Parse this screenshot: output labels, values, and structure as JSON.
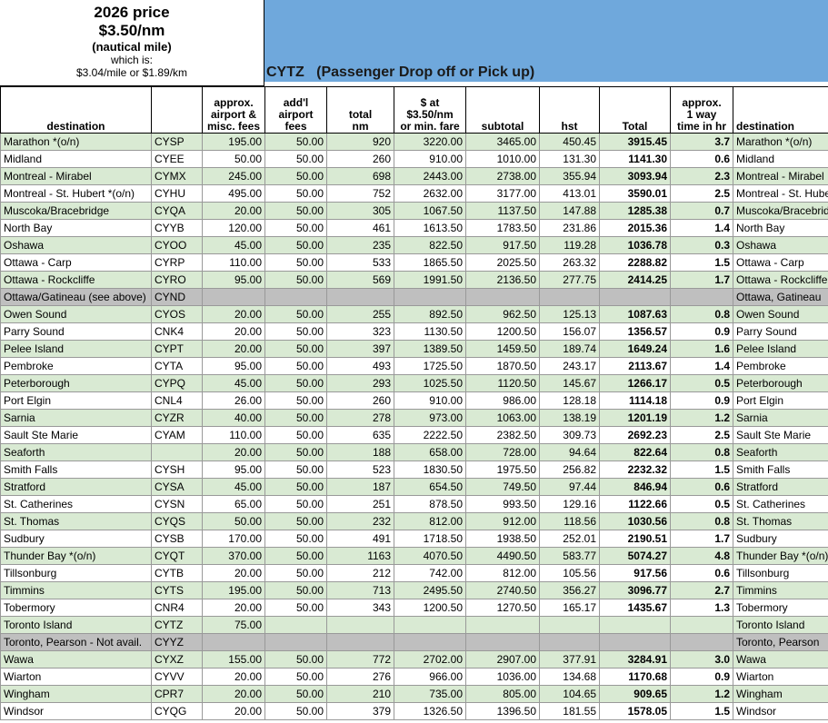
{
  "header": {
    "price_title": "2026 price",
    "price": "$3.50/nm",
    "unit": "(nautical mile)",
    "which_is": "which is:",
    "conversions": "$3.04/mile or $1.89/km",
    "banner_code": "CYTZ",
    "banner_text": "(Passenger Drop off or Pick up)"
  },
  "table": {
    "columns": [
      "destination",
      null,
      "approx.\nairport &\nmisc. fees",
      "add'l\nairport\nfees",
      "total\nnm",
      "$ at\n$3.50/nm\nor min. fare",
      "subtotal",
      "hst",
      "Total",
      "approx.\n1 way\ntime in hr",
      "destination"
    ],
    "row_colors": {
      "green": "#d9ead3",
      "white": "#ffffff",
      "gray": "#bfbfbf"
    },
    "rows": [
      {
        "color": "green",
        "cells": [
          "Marathon *(o/n)",
          "CYSP",
          "195.00",
          "50.00",
          "920",
          "3220.00",
          "3465.00",
          "450.45",
          "3915.45",
          "3.7",
          "Marathon *(o/n)"
        ]
      },
      {
        "color": "white",
        "cells": [
          "Midland",
          "CYEE",
          "50.00",
          "50.00",
          "260",
          "910.00",
          "1010.00",
          "131.30",
          "1141.30",
          "0.6",
          "Midland"
        ]
      },
      {
        "color": "green",
        "cells": [
          "Montreal - Mirabel",
          "CYMX",
          "245.00",
          "50.00",
          "698",
          "2443.00",
          "2738.00",
          "355.94",
          "3093.94",
          "2.3",
          "Montreal - Mirabel"
        ]
      },
      {
        "color": "white",
        "cells": [
          "Montreal - St. Hubert *(o/n)",
          "CYHU",
          "495.00",
          "50.00",
          "752",
          "2632.00",
          "3177.00",
          "413.01",
          "3590.01",
          "2.5",
          "Montreal - St. Hube"
        ]
      },
      {
        "color": "green",
        "cells": [
          "Muscoka/Bracebridge",
          "CYQA",
          "20.00",
          "50.00",
          "305",
          "1067.50",
          "1137.50",
          "147.88",
          "1285.38",
          "0.7",
          "Muscoka/Bracebrid"
        ]
      },
      {
        "color": "white",
        "cells": [
          "North Bay",
          "CYYB",
          "120.00",
          "50.00",
          "461",
          "1613.50",
          "1783.50",
          "231.86",
          "2015.36",
          "1.4",
          "North Bay"
        ]
      },
      {
        "color": "green",
        "cells": [
          "Oshawa",
          "CYOO",
          "45.00",
          "50.00",
          "235",
          "822.50",
          "917.50",
          "119.28",
          "1036.78",
          "0.3",
          "Oshawa"
        ]
      },
      {
        "color": "white",
        "cells": [
          "Ottawa - Carp",
          "CYRP",
          "110.00",
          "50.00",
          "533",
          "1865.50",
          "2025.50",
          "263.32",
          "2288.82",
          "1.5",
          "Ottawa - Carp"
        ]
      },
      {
        "color": "green",
        "cells": [
          "Ottawa - Rockcliffe",
          "CYRO",
          "95.00",
          "50.00",
          "569",
          "1991.50",
          "2136.50",
          "277.75",
          "2414.25",
          "1.7",
          "Ottawa - Rockcliffe"
        ]
      },
      {
        "color": "gray",
        "cells": [
          "Ottawa/Gatineau (see above)",
          "CYND",
          null,
          null,
          null,
          null,
          null,
          null,
          null,
          null,
          "Ottawa, Gatineau"
        ]
      },
      {
        "color": "green",
        "cells": [
          "Owen Sound",
          "CYOS",
          "20.00",
          "50.00",
          "255",
          "892.50",
          "962.50",
          "125.13",
          "1087.63",
          "0.8",
          "Owen Sound"
        ]
      },
      {
        "color": "white",
        "cells": [
          "Parry Sound",
          "CNK4",
          "20.00",
          "50.00",
          "323",
          "1130.50",
          "1200.50",
          "156.07",
          "1356.57",
          "0.9",
          "Parry Sound"
        ]
      },
      {
        "color": "green",
        "cells": [
          "Pelee Island",
          "CYPT",
          "20.00",
          "50.00",
          "397",
          "1389.50",
          "1459.50",
          "189.74",
          "1649.24",
          "1.6",
          "Pelee Island"
        ]
      },
      {
        "color": "white",
        "cells": [
          "Pembroke",
          "CYTA",
          "95.00",
          "50.00",
          "493",
          "1725.50",
          "1870.50",
          "243.17",
          "2113.67",
          "1.4",
          "Pembroke"
        ]
      },
      {
        "color": "green",
        "cells": [
          "Peterborough",
          "CYPQ",
          "45.00",
          "50.00",
          "293",
          "1025.50",
          "1120.50",
          "145.67",
          "1266.17",
          "0.5",
          "Peterborough"
        ]
      },
      {
        "color": "white",
        "cells": [
          "Port Elgin",
          "CNL4",
          "26.00",
          "50.00",
          "260",
          "910.00",
          "986.00",
          "128.18",
          "1114.18",
          "0.9",
          "Port Elgin"
        ]
      },
      {
        "color": "green",
        "cells": [
          "Sarnia",
          "CYZR",
          "40.00",
          "50.00",
          "278",
          "973.00",
          "1063.00",
          "138.19",
          "1201.19",
          "1.2",
          "Sarnia"
        ]
      },
      {
        "color": "white",
        "cells": [
          "Sault Ste Marie",
          "CYAM",
          "110.00",
          "50.00",
          "635",
          "2222.50",
          "2382.50",
          "309.73",
          "2692.23",
          "2.5",
          "Sault Ste Marie"
        ]
      },
      {
        "color": "green",
        "cells": [
          "Seaforth",
          null,
          "20.00",
          "50.00",
          "188",
          "658.00",
          "728.00",
          "94.64",
          "822.64",
          "0.8",
          "Seaforth"
        ]
      },
      {
        "color": "white",
        "cells": [
          "Smith Falls",
          "CYSH",
          "95.00",
          "50.00",
          "523",
          "1830.50",
          "1975.50",
          "256.82",
          "2232.32",
          "1.5",
          "Smith Falls"
        ]
      },
      {
        "color": "green",
        "cells": [
          "Stratford",
          "CYSA",
          "45.00",
          "50.00",
          "187",
          "654.50",
          "749.50",
          "97.44",
          "846.94",
          "0.6",
          "Stratford"
        ]
      },
      {
        "color": "white",
        "cells": [
          "St. Catherines",
          "CYSN",
          "65.00",
          "50.00",
          "251",
          "878.50",
          "993.50",
          "129.16",
          "1122.66",
          "0.5",
          "St. Catherines"
        ]
      },
      {
        "color": "green",
        "cells": [
          "St. Thomas",
          "CYQS",
          "50.00",
          "50.00",
          "232",
          "812.00",
          "912.00",
          "118.56",
          "1030.56",
          "0.8",
          "St. Thomas"
        ]
      },
      {
        "color": "white",
        "cells": [
          "Sudbury",
          "CYSB",
          "170.00",
          "50.00",
          "491",
          "1718.50",
          "1938.50",
          "252.01",
          "2190.51",
          "1.7",
          "Sudbury"
        ]
      },
      {
        "color": "green",
        "cells": [
          "Thunder Bay *(o/n)",
          "CYQT",
          "370.00",
          "50.00",
          "1163",
          "4070.50",
          "4490.50",
          "583.77",
          "5074.27",
          "4.8",
          "Thunder Bay *(o/n)"
        ]
      },
      {
        "color": "white",
        "cells": [
          "Tillsonburg",
          "CYTB",
          "20.00",
          "50.00",
          "212",
          "742.00",
          "812.00",
          "105.56",
          "917.56",
          "0.6",
          "Tillsonburg"
        ]
      },
      {
        "color": "green",
        "cells": [
          "Timmins",
          "CYTS",
          "195.00",
          "50.00",
          "713",
          "2495.50",
          "2740.50",
          "356.27",
          "3096.77",
          "2.7",
          "Timmins"
        ]
      },
      {
        "color": "white",
        "cells": [
          "Tobermory",
          "CNR4",
          "20.00",
          "50.00",
          "343",
          "1200.50",
          "1270.50",
          "165.17",
          "1435.67",
          "1.3",
          "Tobermory"
        ]
      },
      {
        "color": "green",
        "cells": [
          "Toronto Island",
          "CYTZ",
          "75.00",
          null,
          null,
          null,
          null,
          null,
          null,
          null,
          "Toronto Island"
        ]
      },
      {
        "color": "gray",
        "cells": [
          "Toronto, Pearson - Not avail.",
          "CYYZ",
          null,
          null,
          null,
          null,
          null,
          null,
          null,
          null,
          "Toronto, Pearson"
        ]
      },
      {
        "color": "green",
        "cells": [
          "Wawa",
          "CYXZ",
          "155.00",
          "50.00",
          "772",
          "2702.00",
          "2907.00",
          "377.91",
          "3284.91",
          "3.0",
          "Wawa"
        ]
      },
      {
        "color": "white",
        "cells": [
          "Wiarton",
          "CYVV",
          "20.00",
          "50.00",
          "276",
          "966.00",
          "1036.00",
          "134.68",
          "1170.68",
          "0.9",
          "Wiarton"
        ]
      },
      {
        "color": "green",
        "cells": [
          "Wingham",
          "CPR7",
          "20.00",
          "50.00",
          "210",
          "735.00",
          "805.00",
          "104.65",
          "909.65",
          "1.2",
          "Wingham"
        ]
      },
      {
        "color": "white",
        "cells": [
          "Windsor",
          "CYQG",
          "20.00",
          "50.00",
          "379",
          "1326.50",
          "1396.50",
          "181.55",
          "1578.05",
          "1.5",
          "Windsor"
        ]
      }
    ]
  }
}
